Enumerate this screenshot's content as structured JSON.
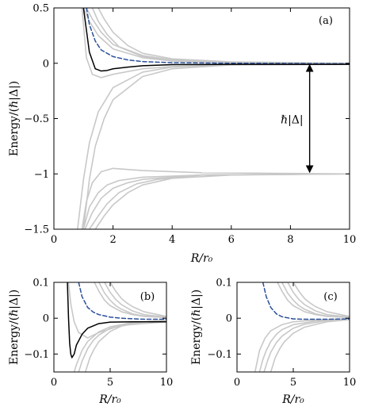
{
  "figure": {
    "colors": {
      "gray": "#c8c8c8",
      "black": "#000000",
      "blue": "#2a4f9a"
    },
    "panels": [
      {
        "id": "a",
        "label": "(a)",
        "xlabel": "R/r₀",
        "ylabel": "Energy/(ℏ|Δ|)",
        "xlim": [
          0,
          10
        ],
        "ylim": [
          -1.5,
          0.5
        ],
        "xticks": [
          0,
          2,
          4,
          6,
          8,
          10
        ],
        "xtick_labels": [
          "0",
          "2",
          "4",
          "6",
          "8",
          "10"
        ],
        "yticks": [
          -1.5,
          -1,
          -0.5,
          0,
          0.5
        ],
        "ytick_labels": [
          "−1.5",
          "−1",
          "−0.5",
          "0",
          "0.5"
        ],
        "annotation": {
          "text": "ℏ|Δ|",
          "arrow_x": 8.65,
          "y_from": 0,
          "y_to": -1
        }
      },
      {
        "id": "b",
        "label": "(b)",
        "xlabel": "R/r₀",
        "ylabel": "Energy/(ℏ|Δ|)",
        "xlim": [
          0,
          10
        ],
        "ylim": [
          -0.15,
          0.1
        ],
        "xticks": [
          0,
          5,
          10
        ],
        "xtick_labels": [
          "0",
          "5",
          "10"
        ],
        "yticks": [
          -0.1,
          0,
          0.1
        ],
        "ytick_labels": [
          "−0.1",
          "0",
          "0.1"
        ],
        "show_black": true
      },
      {
        "id": "c",
        "label": "(c)",
        "xlabel": "R/r₀",
        "ylabel": "Energy/(ℏ|Δ|)",
        "xlim": [
          0,
          10
        ],
        "ylim": [
          -0.15,
          0.1
        ],
        "xticks": [
          0,
          5,
          10
        ],
        "xtick_labels": [
          "0",
          "5",
          "10"
        ],
        "yticks": [
          -0.1,
          0,
          0.1
        ],
        "ytick_labels": [
          "−0.1",
          "0",
          "0.1"
        ],
        "show_black": false
      }
    ]
  },
  "chart_data": [
    {
      "type": "line",
      "panel": "(a)",
      "xlabel": "R/r₀",
      "ylabel": "Energy/(ℏ|Δ|)",
      "xlim": [
        0,
        10
      ],
      "ylim": [
        -1.5,
        0.5
      ],
      "grid": false,
      "series": [
        {
          "style": "black-solid",
          "x": [
            1.0,
            1.2,
            1.4,
            1.6,
            1.8,
            2.0,
            2.5,
            3.0,
            4.0,
            6.0,
            10.0
          ],
          "y": [
            0.5,
            0.1,
            -0.05,
            -0.07,
            -0.065,
            -0.05,
            -0.035,
            -0.022,
            -0.013,
            -0.01,
            -0.01
          ]
        },
        {
          "style": "blue-dashed",
          "x": [
            1.1,
            1.2,
            1.4,
            1.6,
            2.0,
            2.5,
            3.0,
            4.0,
            6.0,
            10.0
          ],
          "y": [
            0.5,
            0.35,
            0.2,
            0.12,
            0.06,
            0.03,
            0.015,
            0.005,
            0.0,
            -0.005
          ]
        },
        {
          "style": "gray",
          "x": [
            1.0,
            1.2,
            1.5,
            2.0,
            3.0,
            4.0,
            6.0,
            10.0
          ],
          "y": [
            0.5,
            0.38,
            0.25,
            0.13,
            0.05,
            0.02,
            0.005,
            0.0
          ]
        },
        {
          "style": "gray",
          "x": [
            1.1,
            1.3,
            1.6,
            2.0,
            3.0,
            4.0,
            6.0,
            10.0
          ],
          "y": [
            0.5,
            0.4,
            0.28,
            0.17,
            0.06,
            0.025,
            0.008,
            0.0
          ]
        },
        {
          "style": "gray",
          "x": [
            1.3,
            1.5,
            1.8,
            2.2,
            3.0,
            4.0,
            6.0,
            10.0
          ],
          "y": [
            0.5,
            0.38,
            0.26,
            0.15,
            0.07,
            0.03,
            0.01,
            0.0
          ]
        },
        {
          "style": "gray",
          "x": [
            1.5,
            1.7,
            2.0,
            2.5,
            3.0,
            4.0,
            6.0,
            10.0
          ],
          "y": [
            0.5,
            0.4,
            0.28,
            0.16,
            0.09,
            0.04,
            0.012,
            0.0
          ]
        },
        {
          "style": "gray",
          "x": [
            0.95,
            1.1,
            1.3,
            1.6,
            2.0,
            3.0,
            4.0,
            6.0,
            10.0
          ],
          "y": [
            0.5,
            0.05,
            -0.1,
            -0.13,
            -0.1,
            -0.05,
            -0.03,
            -0.015,
            -0.01
          ]
        },
        {
          "style": "gray",
          "x": [
            0.8,
            1.0,
            1.2,
            1.5,
            2.0,
            3.0,
            4.0,
            6.0,
            10.0
          ],
          "y": [
            -1.5,
            -1.05,
            -0.72,
            -0.44,
            -0.22,
            -0.08,
            -0.035,
            -0.01,
            -0.005
          ]
        },
        {
          "style": "gray",
          "x": [
            1.0,
            1.2,
            1.4,
            1.7,
            2.0,
            3.0,
            4.0,
            6.0,
            10.0
          ],
          "y": [
            -1.5,
            -1.05,
            -0.75,
            -0.5,
            -0.33,
            -0.12,
            -0.05,
            -0.015,
            -0.005
          ]
        },
        {
          "style": "gray",
          "x": [
            0.95,
            1.1,
            1.3,
            1.6,
            2.0,
            3.0,
            5.0,
            10.0
          ],
          "y": [
            -1.5,
            -1.25,
            -1.08,
            -0.98,
            -0.95,
            -0.97,
            -0.99,
            -1.0
          ]
        },
        {
          "style": "gray",
          "x": [
            1.0,
            1.2,
            1.5,
            1.8,
            2.2,
            3.0,
            5.0,
            10.0
          ],
          "y": [
            -1.5,
            -1.3,
            -1.17,
            -1.1,
            -1.06,
            -1.03,
            -1.01,
            -1.0
          ]
        },
        {
          "style": "gray",
          "x": [
            1.05,
            1.3,
            1.6,
            2.0,
            2.5,
            3.0,
            5.0,
            10.0
          ],
          "y": [
            -1.5,
            -1.35,
            -1.22,
            -1.13,
            -1.08,
            -1.05,
            -1.01,
            -1.0
          ]
        },
        {
          "style": "gray",
          "x": [
            1.2,
            1.5,
            1.8,
            2.2,
            2.8,
            3.5,
            5.0,
            10.0
          ],
          "y": [
            -1.5,
            -1.38,
            -1.27,
            -1.17,
            -1.09,
            -1.05,
            -1.01,
            -1.0
          ]
        },
        {
          "style": "gray",
          "x": [
            1.4,
            1.7,
            2.0,
            2.5,
            3.0,
            4.0,
            6.0,
            10.0
          ],
          "y": [
            -1.5,
            -1.38,
            -1.28,
            -1.17,
            -1.1,
            -1.04,
            -1.01,
            -1.0
          ]
        }
      ]
    },
    {
      "type": "line",
      "panel": "(b)",
      "xlabel": "R/r₀",
      "ylabel": "Energy/(ℏ|Δ|)",
      "xlim": [
        0,
        10
      ],
      "ylim": [
        -0.15,
        0.1
      ],
      "grid": false,
      "series": [
        {
          "style": "black-solid",
          "x": [
            1.2,
            1.3,
            1.4,
            1.5,
            1.6,
            1.8,
            2.0,
            2.5,
            3.0,
            4.0,
            5.0,
            7.0,
            10.0
          ],
          "y": [
            0.1,
            0.0,
            -0.07,
            -0.1,
            -0.11,
            -0.1,
            -0.075,
            -0.045,
            -0.028,
            -0.015,
            -0.011,
            -0.01,
            -0.01
          ]
        },
        {
          "style": "blue-dashed",
          "x": [
            2.2,
            2.5,
            3.0,
            3.5,
            4.0,
            5.0,
            6.0,
            8.0,
            10.0
          ],
          "y": [
            0.1,
            0.06,
            0.03,
            0.017,
            0.01,
            0.003,
            0.0,
            -0.003,
            -0.003
          ]
        },
        {
          "style": "gray",
          "x": [
            3.6,
            4.0,
            4.5,
            5.0,
            6.0,
            7.0,
            8.0,
            10.0
          ],
          "y": [
            0.1,
            0.075,
            0.05,
            0.035,
            0.018,
            0.01,
            0.005,
            0.002
          ]
        },
        {
          "style": "gray",
          "x": [
            4.0,
            4.5,
            5.0,
            5.5,
            6.0,
            7.0,
            8.0,
            10.0
          ],
          "y": [
            0.1,
            0.07,
            0.05,
            0.035,
            0.025,
            0.012,
            0.006,
            0.002
          ]
        },
        {
          "style": "gray",
          "x": [
            4.5,
            5.0,
            5.5,
            6.0,
            7.0,
            8.0,
            10.0
          ],
          "y": [
            0.1,
            0.072,
            0.052,
            0.038,
            0.02,
            0.01,
            0.003
          ]
        },
        {
          "style": "gray",
          "x": [
            5.0,
            5.5,
            6.0,
            6.5,
            7.0,
            8.0,
            10.0
          ],
          "y": [
            0.1,
            0.075,
            0.055,
            0.042,
            0.032,
            0.018,
            0.005
          ]
        },
        {
          "style": "gray",
          "x": [
            1.3,
            1.5,
            1.8,
            2.2,
            3.0,
            4.0,
            6.0,
            10.0
          ],
          "y": [
            0.1,
            0.04,
            -0.01,
            -0.04,
            -0.055,
            -0.04,
            -0.02,
            -0.01
          ]
        },
        {
          "style": "gray",
          "x": [
            1.8,
            2.0,
            2.5,
            3.0,
            4.0,
            5.0,
            7.0,
            10.0
          ],
          "y": [
            -0.15,
            -0.13,
            -0.09,
            -0.065,
            -0.038,
            -0.024,
            -0.012,
            -0.007
          ]
        },
        {
          "style": "gray",
          "x": [
            2.2,
            2.5,
            3.0,
            3.5,
            4.0,
            5.0,
            7.0,
            10.0
          ],
          "y": [
            -0.15,
            -0.12,
            -0.085,
            -0.062,
            -0.047,
            -0.028,
            -0.013,
            -0.006
          ]
        },
        {
          "style": "gray",
          "x": [
            2.8,
            3.2,
            3.6,
            4.0,
            5.0,
            6.0,
            8.0,
            10.0
          ],
          "y": [
            -0.15,
            -0.11,
            -0.085,
            -0.065,
            -0.037,
            -0.022,
            -0.01,
            -0.005
          ]
        }
      ]
    },
    {
      "type": "line",
      "panel": "(c)",
      "xlabel": "R/r₀",
      "ylabel": "Energy/(ℏ|Δ|)",
      "xlim": [
        0,
        10
      ],
      "ylim": [
        -0.15,
        0.1
      ],
      "grid": false,
      "series": [
        {
          "style": "blue-dashed",
          "x": [
            2.3,
            2.6,
            3.0,
            3.5,
            4.0,
            5.0,
            6.0,
            8.0,
            10.0
          ],
          "y": [
            0.1,
            0.06,
            0.03,
            0.012,
            0.004,
            -0.002,
            -0.003,
            -0.003,
            -0.002
          ]
        },
        {
          "style": "gray",
          "x": [
            3.6,
            4.0,
            4.5,
            5.0,
            6.0,
            7.0,
            8.0,
            10.0
          ],
          "y": [
            0.1,
            0.075,
            0.05,
            0.035,
            0.018,
            0.01,
            0.005,
            0.002
          ]
        },
        {
          "style": "gray",
          "x": [
            4.0,
            4.5,
            5.0,
            5.5,
            6.0,
            7.0,
            8.0,
            10.0
          ],
          "y": [
            0.1,
            0.07,
            0.05,
            0.035,
            0.025,
            0.012,
            0.006,
            0.002
          ]
        },
        {
          "style": "gray",
          "x": [
            4.5,
            5.0,
            5.5,
            6.0,
            7.0,
            8.0,
            10.0
          ],
          "y": [
            0.1,
            0.072,
            0.052,
            0.038,
            0.02,
            0.01,
            0.003
          ]
        },
        {
          "style": "gray",
          "x": [
            5.0,
            5.5,
            6.0,
            6.5,
            7.0,
            8.0,
            10.0
          ],
          "y": [
            0.1,
            0.075,
            0.055,
            0.042,
            0.032,
            0.018,
            0.005
          ]
        },
        {
          "style": "gray",
          "x": [
            1.6,
            1.8,
            2.0,
            2.5,
            3.0,
            4.0,
            5.0,
            7.0,
            10.0
          ],
          "y": [
            -0.15,
            -0.12,
            -0.09,
            -0.055,
            -0.035,
            -0.018,
            -0.01,
            -0.005,
            -0.002
          ]
        },
        {
          "style": "gray",
          "x": [
            2.0,
            2.3,
            2.6,
            3.0,
            3.5,
            4.0,
            5.0,
            7.0,
            10.0
          ],
          "y": [
            -0.15,
            -0.115,
            -0.09,
            -0.065,
            -0.045,
            -0.032,
            -0.018,
            -0.008,
            -0.003
          ]
        },
        {
          "style": "gray",
          "x": [
            2.4,
            2.7,
            3.0,
            3.5,
            4.0,
            5.0,
            6.0,
            8.0,
            10.0
          ],
          "y": [
            -0.15,
            -0.12,
            -0.095,
            -0.068,
            -0.05,
            -0.028,
            -0.017,
            -0.007,
            -0.003
          ]
        },
        {
          "style": "gray",
          "x": [
            3.0,
            3.4,
            3.8,
            4.2,
            5.0,
            6.0,
            8.0,
            10.0
          ],
          "y": [
            -0.15,
            -0.11,
            -0.085,
            -0.066,
            -0.042,
            -0.025,
            -0.01,
            -0.004
          ]
        }
      ]
    }
  ]
}
